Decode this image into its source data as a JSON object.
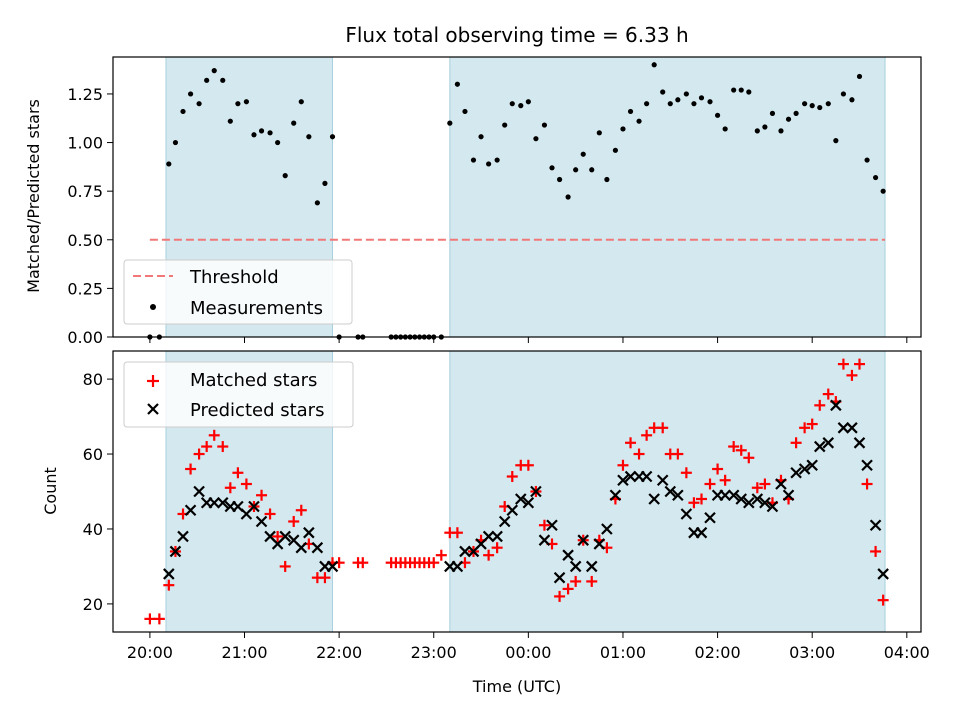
{
  "figure": {
    "title": "Flux total observing time = 6.33 h",
    "xlabel": "Time (UTC)",
    "x_ticks": [
      "20:00",
      "21:00",
      "22:00",
      "23:00",
      "00:00",
      "01:00",
      "02:00",
      "03:00",
      "04:00"
    ],
    "x_tick_hours": [
      20,
      21,
      22,
      23,
      24,
      25,
      26,
      27,
      28
    ],
    "xlim_hours": [
      19.61,
      28.15
    ],
    "shaded_intervals_hours": [
      [
        20.17,
        21.93
      ],
      [
        23.17,
        27.77
      ]
    ],
    "colors": {
      "shade": "#d4e9ef",
      "shade_edge": "#a8d0de",
      "threshold": "#f07878",
      "measurements": "#000000",
      "matched": "#ff0000",
      "predicted": "#000000"
    }
  },
  "chart_data": [
    {
      "type": "scatter",
      "ylabel": "Matched/Predicted stars",
      "ylim": [
        0,
        1.44
      ],
      "y_ticks": [
        "0.00",
        "0.25",
        "0.50",
        "0.75",
        "1.00",
        "1.25"
      ],
      "y_tick_values": [
        0,
        0.25,
        0.5,
        0.75,
        1.0,
        1.25
      ],
      "legend_position": "lower-left",
      "threshold": {
        "name": "Threshold",
        "y": 0.5,
        "x_range_hours": [
          20.0,
          27.77
        ],
        "style": "dashed"
      },
      "series": [
        {
          "name": "Measurements",
          "marker": "dot",
          "x": [
            20.0,
            20.1,
            20.2,
            20.27,
            20.35,
            20.43,
            20.52,
            20.6,
            20.68,
            20.77,
            20.85,
            20.93,
            21.02,
            21.1,
            21.18,
            21.27,
            21.35,
            21.43,
            21.52,
            21.6,
            21.68,
            21.77,
            21.85,
            21.93,
            22.0,
            22.2,
            22.25,
            22.55,
            22.6,
            22.65,
            22.7,
            22.75,
            22.8,
            22.85,
            22.9,
            22.95,
            23.0,
            23.08,
            23.17,
            23.25,
            23.33,
            23.42,
            23.5,
            23.58,
            23.67,
            23.75,
            23.83,
            23.92,
            24.0,
            24.08,
            24.17,
            24.25,
            24.33,
            24.42,
            24.5,
            24.58,
            24.67,
            24.75,
            24.83,
            24.92,
            25.0,
            25.08,
            25.17,
            25.25,
            25.33,
            25.42,
            25.5,
            25.58,
            25.67,
            25.75,
            25.83,
            25.92,
            26.0,
            26.08,
            26.17,
            26.25,
            26.33,
            26.42,
            26.5,
            26.58,
            26.67,
            26.75,
            26.83,
            26.92,
            27.0,
            27.08,
            27.17,
            27.25,
            27.33,
            27.42,
            27.5,
            27.58,
            27.67,
            27.75
          ],
          "y": [
            0,
            0,
            0.89,
            1.0,
            1.16,
            1.25,
            1.2,
            1.32,
            1.37,
            1.32,
            1.11,
            1.2,
            1.21,
            1.04,
            1.06,
            1.05,
            1.0,
            0.83,
            1.1,
            1.21,
            1.03,
            0.69,
            0.79,
            1.03,
            0,
            0,
            0,
            0,
            0,
            0,
            0,
            0,
            0,
            0,
            0,
            0,
            0,
            0,
            1.1,
            1.3,
            1.16,
            0.91,
            1.03,
            0.89,
            0.91,
            1.09,
            1.2,
            1.19,
            1.21,
            1.02,
            1.09,
            0.87,
            0.81,
            0.72,
            0.86,
            0.94,
            0.86,
            1.05,
            0.81,
            0.96,
            1.07,
            1.16,
            1.11,
            1.2,
            1.4,
            1.26,
            1.2,
            1.22,
            1.25,
            1.2,
            1.23,
            1.21,
            1.14,
            1.07,
            1.27,
            1.27,
            1.26,
            1.06,
            1.08,
            1.15,
            1.06,
            1.12,
            1.15,
            1.2,
            1.19,
            1.18,
            1.2,
            1.01,
            1.25,
            1.22,
            1.34,
            0.91,
            0.82,
            0.75
          ]
        }
      ]
    },
    {
      "type": "scatter",
      "ylabel": "Count",
      "ylim": [
        12.5,
        87.5
      ],
      "y_ticks": [
        "20",
        "40",
        "60",
        "80"
      ],
      "y_tick_values": [
        20,
        40,
        60,
        80
      ],
      "legend_position": "top-left",
      "series": [
        {
          "name": "Matched stars",
          "marker": "plus",
          "x": [
            20.0,
            20.1,
            20.2,
            20.27,
            20.35,
            20.43,
            20.52,
            20.6,
            20.68,
            20.77,
            20.85,
            20.93,
            21.02,
            21.1,
            21.18,
            21.27,
            21.35,
            21.43,
            21.52,
            21.6,
            21.68,
            21.77,
            21.85,
            21.93,
            22.0,
            22.2,
            22.25,
            22.55,
            22.6,
            22.65,
            22.7,
            22.75,
            22.8,
            22.85,
            22.9,
            22.95,
            23.0,
            23.08,
            23.17,
            23.25,
            23.33,
            23.42,
            23.5,
            23.58,
            23.67,
            23.75,
            23.83,
            23.92,
            24.0,
            24.08,
            24.17,
            24.25,
            24.33,
            24.42,
            24.5,
            24.58,
            24.67,
            24.75,
            24.83,
            24.92,
            25.0,
            25.08,
            25.17,
            25.25,
            25.33,
            25.42,
            25.5,
            25.58,
            25.67,
            25.75,
            25.83,
            25.92,
            26.0,
            26.08,
            26.17,
            26.25,
            26.33,
            26.42,
            26.5,
            26.58,
            26.67,
            26.75,
            26.83,
            26.92,
            27.0,
            27.08,
            27.17,
            27.25,
            27.33,
            27.42,
            27.5,
            27.58,
            27.67,
            27.75
          ],
          "y": [
            16,
            16,
            25,
            34,
            44,
            56,
            60,
            62,
            65,
            62,
            51,
            55,
            52,
            46,
            49,
            44,
            38,
            30,
            42,
            45,
            36,
            27,
            27,
            31,
            31,
            31,
            31,
            31,
            31,
            31,
            31,
            31,
            31,
            31,
            31,
            31,
            31,
            33,
            39,
            39,
            31,
            34,
            37,
            33,
            35,
            46,
            54,
            57,
            57,
            50,
            41,
            36,
            22,
            24,
            26,
            37,
            26,
            37,
            35,
            48,
            57,
            63,
            60,
            65,
            67,
            67,
            60,
            60,
            55,
            47,
            48,
            52,
            56,
            53,
            62,
            61,
            59,
            51,
            52,
            47,
            53,
            48,
            63,
            67,
            68,
            73,
            76,
            74,
            84,
            81,
            84,
            52,
            34,
            21
          ]
        },
        {
          "name": "Predicted stars",
          "marker": "x",
          "x": [
            20.2,
            20.27,
            20.35,
            20.43,
            20.52,
            20.6,
            20.68,
            20.77,
            20.85,
            20.93,
            21.02,
            21.1,
            21.18,
            21.27,
            21.35,
            21.43,
            21.52,
            21.6,
            21.68,
            21.77,
            21.85,
            21.93,
            23.17,
            23.25,
            23.33,
            23.42,
            23.5,
            23.58,
            23.67,
            23.75,
            23.83,
            23.92,
            24.0,
            24.08,
            24.17,
            24.25,
            24.33,
            24.42,
            24.5,
            24.58,
            24.67,
            24.75,
            24.83,
            24.92,
            25.0,
            25.08,
            25.17,
            25.25,
            25.33,
            25.42,
            25.5,
            25.58,
            25.67,
            25.75,
            25.83,
            25.92,
            26.0,
            26.08,
            26.17,
            26.25,
            26.33,
            26.42,
            26.5,
            26.58,
            26.67,
            26.75,
            26.83,
            26.92,
            27.0,
            27.08,
            27.17,
            27.25,
            27.33,
            27.42,
            27.5,
            27.58,
            27.67,
            27.75
          ],
          "y": [
            28,
            34,
            38,
            45,
            50,
            47,
            47,
            47,
            46,
            46,
            44,
            46,
            42,
            38,
            36,
            38,
            37,
            35,
            39,
            35,
            30,
            30,
            30,
            30,
            34,
            34,
            36,
            38,
            38,
            42,
            45,
            48,
            47,
            50,
            37,
            41,
            27,
            33,
            30,
            37,
            30,
            36,
            40,
            49,
            53,
            54,
            54,
            54,
            48,
            53,
            50,
            49,
            44,
            39,
            39,
            43,
            49,
            49,
            49,
            48,
            47,
            48,
            47,
            46,
            52,
            49,
            55,
            56,
            57,
            62,
            63,
            73,
            67,
            67,
            63,
            57,
            41,
            28
          ]
        }
      ]
    }
  ]
}
